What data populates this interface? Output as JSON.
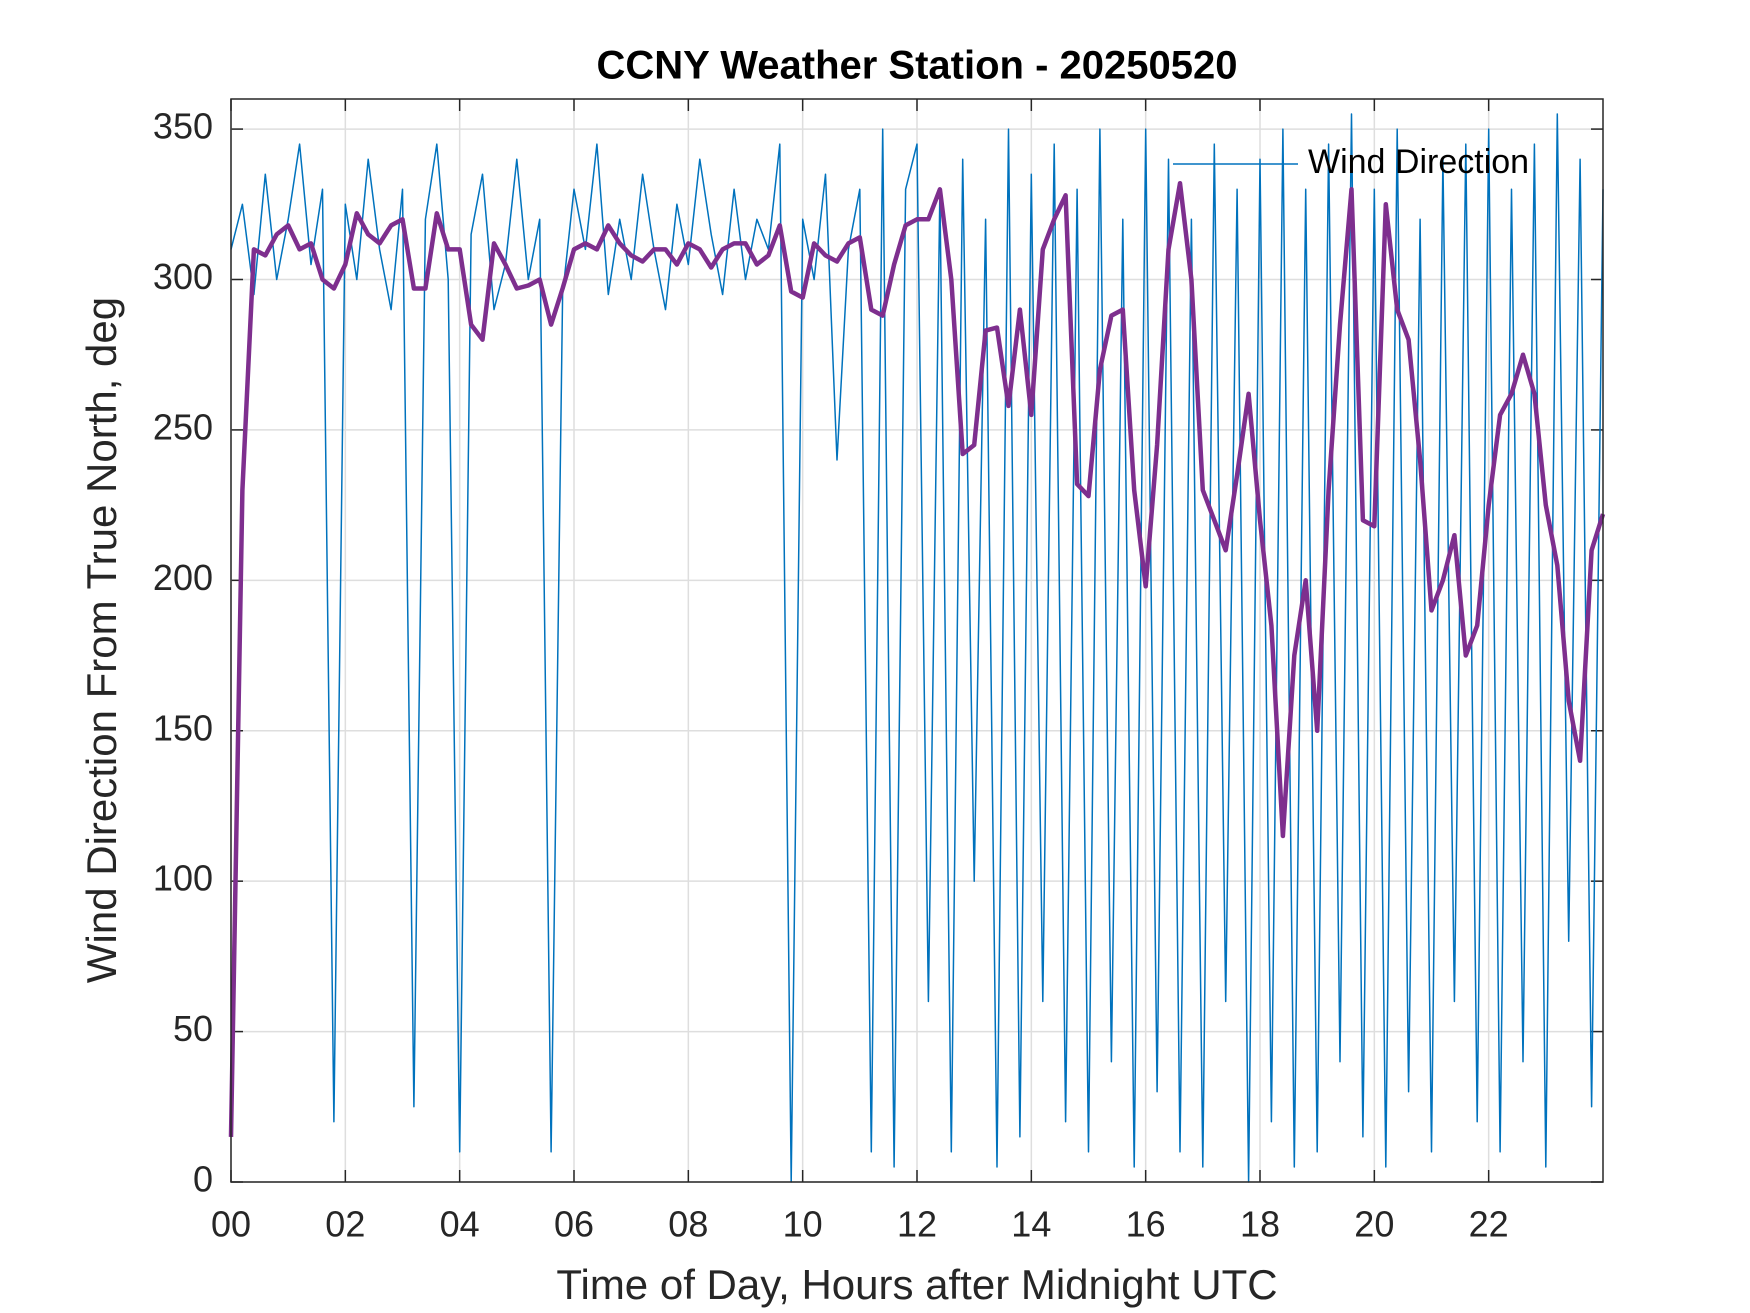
{
  "chart_data": {
    "type": "line",
    "title": "CCNY Weather Station - 20250520",
    "xlabel": "Time of Day, Hours after Midnight UTC",
    "ylabel": "Wind Direction From True North, deg",
    "x": [
      0,
      0.2,
      0.4,
      0.6,
      0.8,
      1,
      1.2,
      1.4,
      1.6,
      1.8,
      2,
      2.2,
      2.4,
      2.6,
      2.8,
      3,
      3.2,
      3.4,
      3.6,
      3.8,
      4,
      4.2,
      4.4,
      4.6,
      4.8,
      5,
      5.2,
      5.4,
      5.6,
      5.8,
      6,
      6.2,
      6.4,
      6.6,
      6.8,
      7,
      7.2,
      7.4,
      7.6,
      7.8,
      8,
      8.2,
      8.4,
      8.6,
      8.8,
      9,
      9.2,
      9.4,
      9.6,
      9.8,
      10,
      10.2,
      10.4,
      10.6,
      10.8,
      11,
      11.2,
      11.4,
      11.6,
      11.8,
      12,
      12.2,
      12.4,
      12.6,
      12.8,
      13,
      13.2,
      13.4,
      13.6,
      13.8,
      14,
      14.2,
      14.4,
      14.6,
      14.8,
      15,
      15.2,
      15.4,
      15.6,
      15.8,
      16,
      16.2,
      16.4,
      16.6,
      16.8,
      17,
      17.2,
      17.4,
      17.6,
      17.8,
      18,
      18.2,
      18.4,
      18.6,
      18.8,
      19,
      19.2,
      19.4,
      19.6,
      19.8,
      20,
      20.2,
      20.4,
      20.6,
      20.8,
      21,
      21.2,
      21.4,
      21.6,
      21.8,
      22,
      22.2,
      22.4,
      22.6,
      22.8,
      23,
      23.2,
      23.4,
      23.6,
      23.8,
      24
    ],
    "series": [
      {
        "name": "Wind Direction",
        "color": "#0072bd",
        "width": 1.5,
        "values": [
          310,
          325,
          295,
          335,
          300,
          320,
          345,
          305,
          330,
          20,
          325,
          300,
          340,
          310,
          290,
          330,
          25,
          320,
          345,
          300,
          10,
          315,
          335,
          290,
          305,
          340,
          300,
          320,
          10,
          295,
          330,
          310,
          345,
          295,
          320,
          300,
          335,
          310,
          290,
          325,
          305,
          340,
          315,
          295,
          330,
          300,
          320,
          310,
          345,
          0,
          320,
          300,
          335,
          240,
          310,
          330,
          10,
          350,
          5,
          330,
          345,
          60,
          330,
          10,
          340,
          100,
          320,
          5,
          350,
          15,
          335,
          60,
          345,
          20,
          330,
          10,
          350,
          40,
          320,
          5,
          350,
          30,
          340,
          10,
          320,
          5,
          345,
          60,
          330,
          0,
          340,
          20,
          350,
          5,
          330,
          10,
          345,
          40,
          355,
          15,
          330,
          5,
          350,
          30,
          320,
          10,
          340,
          60,
          345,
          20,
          350,
          10,
          330,
          40,
          345,
          5,
          355,
          80,
          340,
          25,
          330
        ]
      },
      {
        "color": "#7e2f8e",
        "width": 4.5,
        "values": [
          15,
          230,
          310,
          308,
          315,
          318,
          310,
          312,
          300,
          297,
          305,
          322,
          315,
          312,
          318,
          320,
          297,
          297,
          322,
          310,
          310,
          285,
          280,
          312,
          305,
          297,
          298,
          300,
          285,
          297,
          310,
          312,
          310,
          318,
          312,
          308,
          306,
          310,
          310,
          305,
          312,
          310,
          304,
          310,
          312,
          312,
          305,
          308,
          318,
          296,
          294,
          312,
          308,
          306,
          312,
          314,
          290,
          288,
          305,
          318,
          320,
          320,
          330,
          300,
          242,
          245,
          283,
          284,
          258,
          290,
          255,
          310,
          320,
          328,
          232,
          228,
          270,
          288,
          290,
          230,
          198,
          245,
          310,
          332,
          300,
          230,
          220,
          210,
          235,
          262,
          220,
          185,
          115,
          175,
          200,
          150,
          230,
          285,
          330,
          220,
          218,
          325,
          290,
          280,
          240,
          190,
          200,
          215,
          175,
          185,
          225,
          255,
          262,
          275,
          262,
          225,
          205,
          160,
          140,
          210,
          222
        ]
      }
    ],
    "xlim": [
      0,
      24
    ],
    "xticks": [
      {
        "value": 0,
        "label": "00"
      },
      {
        "value": 2,
        "label": "02"
      },
      {
        "value": 4,
        "label": "04"
      },
      {
        "value": 6,
        "label": "06"
      },
      {
        "value": 8,
        "label": "08"
      },
      10,
      12,
      14,
      16,
      18,
      20,
      22
    ],
    "ylim": [
      0,
      360
    ],
    "yticks": [
      0,
      50,
      100,
      150,
      200,
      250,
      300,
      350
    ],
    "grid": true,
    "legend": "northeast"
  }
}
